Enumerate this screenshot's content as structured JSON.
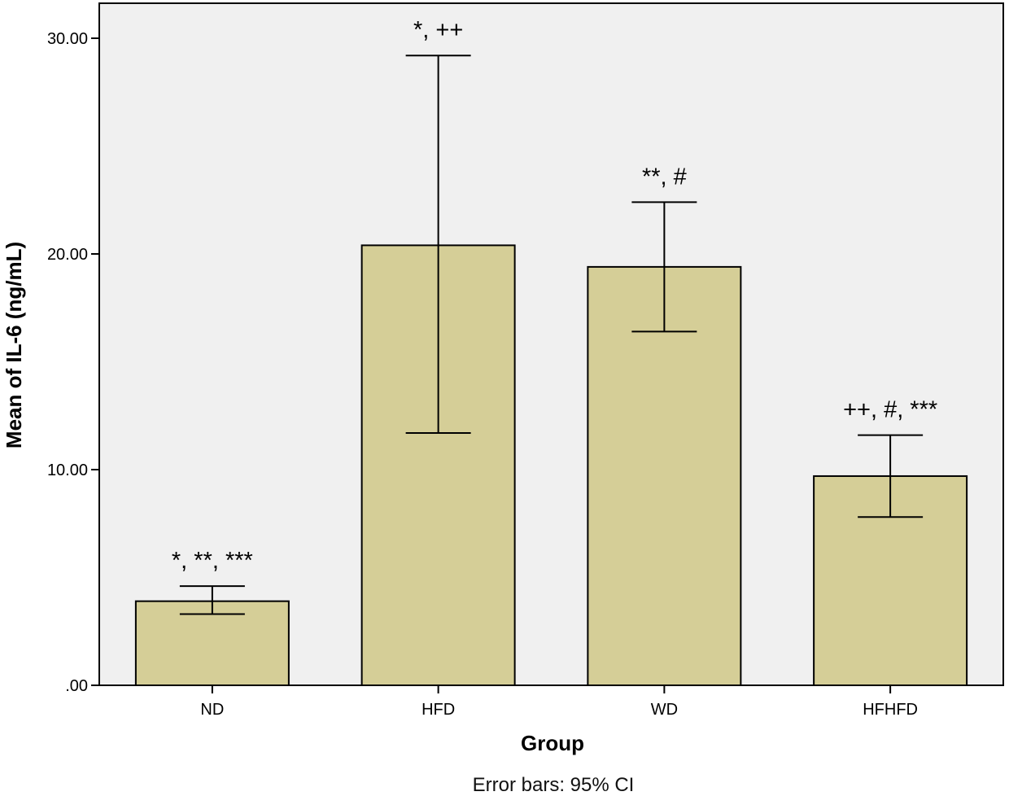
{
  "chart_data": {
    "type": "bar",
    "categories": [
      "ND",
      "HFD",
      "WD",
      "HFHFD"
    ],
    "values": [
      3.9,
      20.4,
      19.4,
      9.7
    ],
    "error_bars": {
      "label": "Error bars: 95% CI",
      "lower": [
        3.3,
        11.7,
        16.4,
        7.8
      ],
      "upper": [
        4.6,
        29.2,
        22.4,
        11.6
      ]
    },
    "annotations": [
      "*, **, ***",
      "*, ++",
      "**, #",
      "++, #, ***"
    ],
    "xlabel": "Group",
    "ylabel": "Mean of IL-6 (ng/mL)",
    "ylim": [
      0,
      30
    ],
    "yticks": [
      0,
      10,
      20,
      30
    ],
    "ytick_labels": [
      ".00",
      "10.00",
      "20.00",
      "30.00"
    ],
    "grid": false,
    "colors": {
      "bar_fill": "#d5ce97",
      "plot_background": "#f0f0f0",
      "stroke": "#000000"
    }
  }
}
